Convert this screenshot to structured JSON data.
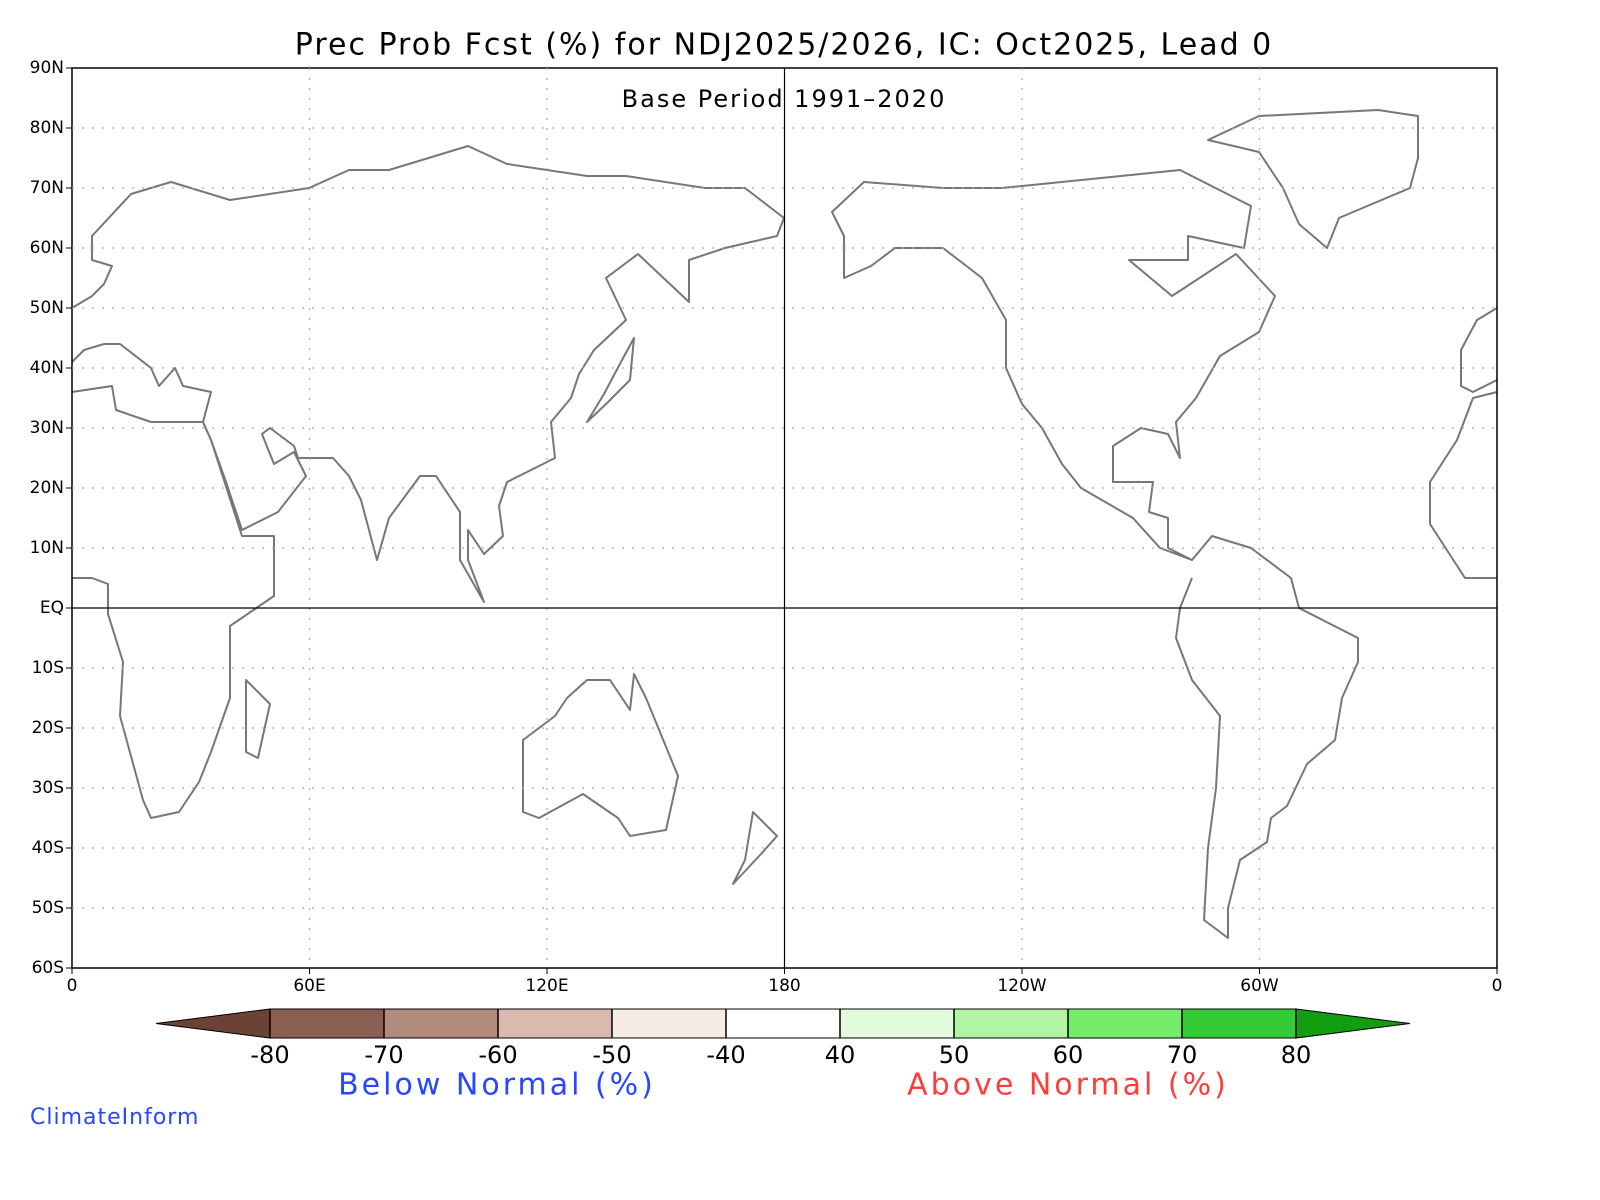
{
  "title": "Prec Prob Fcst (%) for NDJ2025/2026, IC: Oct2025, Lead 0",
  "subtitle": "Base Period 1991–2020",
  "map": {
    "lon_ticks": [
      0,
      {
        "value": 60,
        "label": "60E"
      },
      {
        "value": 120,
        "label": "120E"
      },
      180,
      {
        "value": 240,
        "label": "120W"
      },
      {
        "value": 300,
        "label": "60W"
      },
      {
        "value": 360,
        "label": "0"
      }
    ],
    "lat_ticks": [
      {
        "value": 90,
        "label": "90N"
      },
      {
        "value": 80,
        "label": "80N"
      },
      {
        "value": 70,
        "label": "70N"
      },
      {
        "value": 60,
        "label": "60N"
      },
      {
        "value": 50,
        "label": "50N"
      },
      {
        "value": 40,
        "label": "40N"
      },
      {
        "value": 30,
        "label": "30N"
      },
      {
        "value": 20,
        "label": "20N"
      },
      {
        "value": 10,
        "label": "10N"
      },
      {
        "value": 0,
        "label": "EQ"
      },
      {
        "value": -10,
        "label": "10S"
      },
      {
        "value": -20,
        "label": "20S"
      },
      {
        "value": -30,
        "label": "30S"
      },
      {
        "value": -40,
        "label": "40S"
      },
      {
        "value": -50,
        "label": "50S"
      },
      {
        "value": -60,
        "label": "60S"
      }
    ],
    "grid": true
  },
  "colorbar": {
    "levels": [
      -80,
      -70,
      -60,
      -50,
      -40,
      40,
      50,
      60,
      70,
      80
    ],
    "colors": [
      "#6b4335",
      "#8b5e53",
      "#b38a7e",
      "#dcb9ae",
      "#f6ece4",
      "#ffffff",
      "#e2fbdc",
      "#b1f5a4",
      "#77ec6b",
      "#34cc34",
      "#119e11"
    ]
  },
  "below_label": "Below Normal (%)",
  "above_label": "Above Normal (%)",
  "credit": "ClimateInform"
}
